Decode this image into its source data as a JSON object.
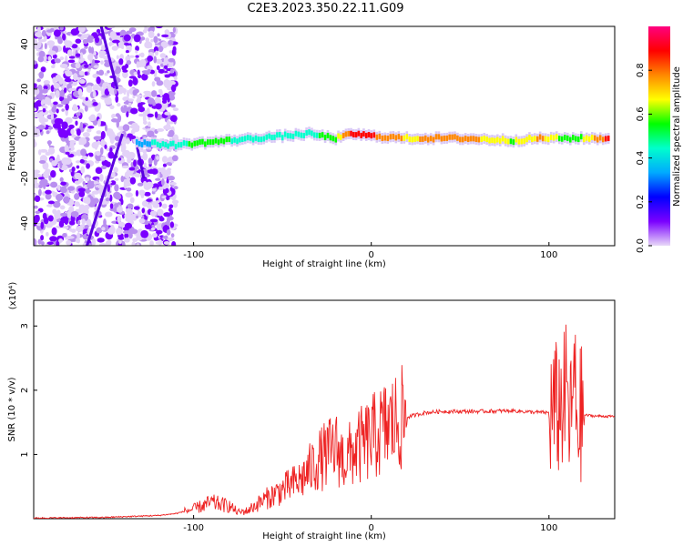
{
  "page_title": "C2E3.2023.350.22.11.G09",
  "chart_data": [
    {
      "type": "heatmap",
      "title": "C2E3.2023.350.22.11.G09",
      "xlabel": "Height of straight line (km)",
      "ylabel": "Frequency (Hz)",
      "xlim": [
        -190,
        137
      ],
      "ylim": [
        -50,
        48
      ],
      "x_ticks": [
        -100,
        0,
        100
      ],
      "y_ticks": [
        -40,
        -20,
        0,
        20,
        40
      ],
      "colorbar": {
        "label": "Normalized spectral amplitude",
        "range": [
          0,
          1
        ],
        "ticks": [
          "0.0",
          "0.2",
          "0.4",
          "0.6",
          "0.8"
        ],
        "colormap": [
          "#e8d8f8",
          "#7a00ff",
          "#0000ff",
          "#00aaff",
          "#00ffcc",
          "#00ff00",
          "#ffff00",
          "#ff8800",
          "#ff0000",
          "#ff0080"
        ]
      },
      "main_band": [
        {
          "x": -132,
          "f": -4,
          "amp": 0.35
        },
        {
          "x": -110,
          "f": -5,
          "amp": 0.45
        },
        {
          "x": -95,
          "f": -4,
          "amp": 0.55
        },
        {
          "x": -80,
          "f": -3,
          "amp": 0.5
        },
        {
          "x": -65,
          "f": -2,
          "amp": 0.45
        },
        {
          "x": -50,
          "f": -1,
          "amp": 0.4
        },
        {
          "x": -35,
          "f": 0,
          "amp": 0.45
        },
        {
          "x": -20,
          "f": -2,
          "amp": 0.6
        },
        {
          "x": -10,
          "f": 0,
          "amp": 0.9
        },
        {
          "x": 0,
          "f": -1,
          "amp": 0.85
        },
        {
          "x": 20,
          "f": -2,
          "amp": 0.7
        },
        {
          "x": 50,
          "f": -2,
          "amp": 0.8
        },
        {
          "x": 80,
          "f": -3,
          "amp": 0.6
        },
        {
          "x": 95,
          "f": -2,
          "amp": 0.75
        },
        {
          "x": 112,
          "f": -2,
          "amp": 0.5
        },
        {
          "x": 135,
          "f": -2,
          "amp": 0.9
        }
      ]
    },
    {
      "type": "line",
      "xlabel": "Height of straight line (km)",
      "ylabel": "SNR (10 * v/v)",
      "y_multiplier": "(x10⁴)",
      "xlim": [
        -190,
        137
      ],
      "ylim": [
        0,
        3.4
      ],
      "x_ticks": [
        -100,
        0,
        100
      ],
      "y_ticks": [
        1,
        2,
        3
      ],
      "series": [
        {
          "name": "SNR",
          "color": "#ee2222",
          "x": [
            -190,
            -150,
            -120,
            -110,
            -100,
            -90,
            -80,
            -75,
            -70,
            -60,
            -50,
            -40,
            -35,
            -30,
            -25,
            -20,
            -15,
            -10,
            -5,
            0,
            5,
            10,
            20,
            30,
            40,
            60,
            80,
            90,
            100,
            105,
            108,
            110,
            112,
            114,
            116,
            118,
            125,
            137
          ],
          "y": [
            0.01,
            0.02,
            0.05,
            0.08,
            0.15,
            0.25,
            0.2,
            0.1,
            0.12,
            0.3,
            0.45,
            0.6,
            0.75,
            0.9,
            1.0,
            1.1,
            0.9,
            1.05,
            1.15,
            1.25,
            1.35,
            1.45,
            1.58,
            1.65,
            1.67,
            1.67,
            1.68,
            1.66,
            1.65,
            1.7,
            1.8,
            2.0,
            1.4,
            2.2,
            1.5,
            1.62,
            1.6,
            1.59
          ]
        }
      ]
    }
  ]
}
